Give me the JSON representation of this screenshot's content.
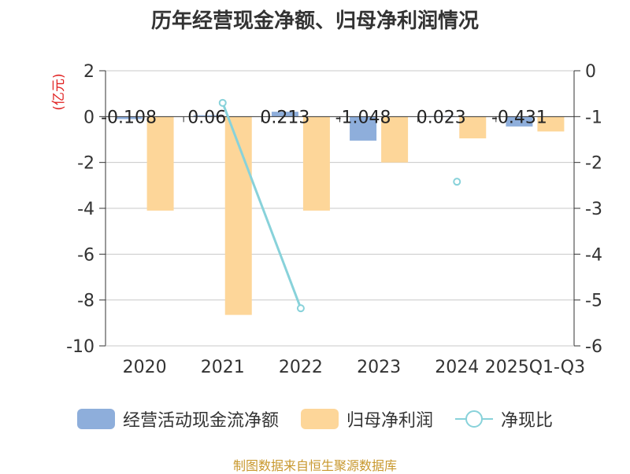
{
  "chart_data": {
    "type": "bar",
    "title": "历年经营现金净额、归母净利润情况",
    "categories": [
      "2020",
      "2021",
      "2022",
      "2023",
      "2024",
      "2025Q1-Q3"
    ],
    "ylabel_left": "(亿元)",
    "ylim_left": [
      -10,
      2
    ],
    "yticks_left": [
      "2",
      "0",
      "-2",
      "-4",
      "-6",
      "-8",
      "-10"
    ],
    "ylim_right": [
      -6,
      0
    ],
    "yticks_right": [
      "0",
      "-1",
      "-2",
      "-3",
      "-4",
      "-5",
      "-6"
    ],
    "series": [
      {
        "name": "经营活动现金流净额",
        "axis": "left",
        "color": "#8eaedb",
        "values": [
          -0.108,
          0.06,
          0.213,
          -1.048,
          0.023,
          -0.431
        ],
        "labels": [
          "-0.108",
          "0.06",
          "0.213",
          "-1.048",
          "0.023",
          "-0.431"
        ]
      },
      {
        "name": "归母净利润",
        "axis": "left",
        "color": "#fdd699",
        "values": [
          -4.1,
          -8.65,
          -4.1,
          -2.0,
          -0.95,
          -0.65
        ]
      },
      {
        "name": "净现比",
        "type": "line",
        "axis": "right",
        "color": "#88d2da",
        "values": [
          null,
          -0.7,
          -5.18,
          null,
          -2.42,
          null
        ]
      }
    ]
  },
  "source": "制图数据来自恒生聚源数据库"
}
